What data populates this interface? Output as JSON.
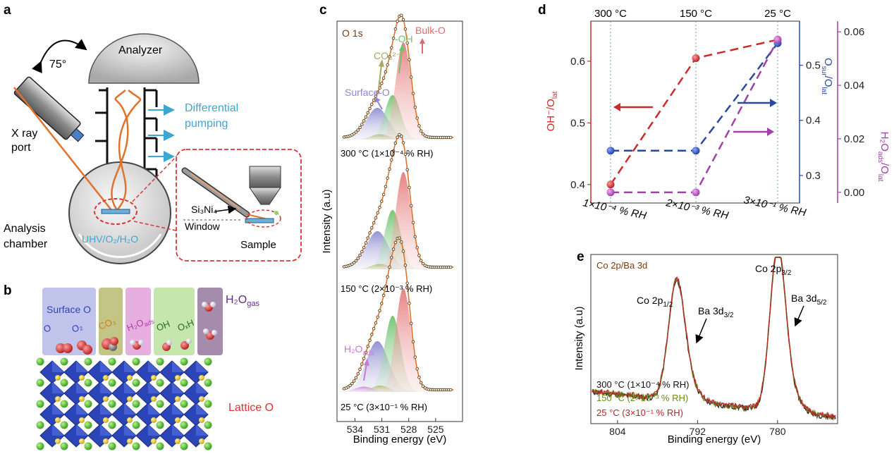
{
  "panels": {
    "a": "a",
    "b": "b",
    "c": "c",
    "d": "d",
    "e": "e"
  },
  "panel_a": {
    "angle": "75°",
    "analyzer": "Analyzer",
    "differential": "Differential",
    "pumping": "pumping",
    "xray_1": "X ray",
    "xray_2": "port",
    "chamber_1": "Analysis",
    "chamber_2": "chamber",
    "gas": "UHV/O₂/H₂O",
    "membrane": "Si₃Ni₄",
    "window": "Window",
    "sample": "Sample"
  },
  "panel_b": {
    "surface_o": "Surface O",
    "o_species": "O",
    "o2_species": "O₂",
    "co3_species": "CO₃",
    "h2o_ads": "H₂O",
    "h2o_ads_sub": "ads",
    "oh_species": "OH",
    "ohx_species": "OₓH",
    "h2o_gas": "H₂O",
    "h2o_gas_sub": "gas",
    "lattice_o": "Lattice O",
    "colors": {
      "surface": "#b9bde8",
      "co3": "#bcbf7a",
      "h2o": "#e4a6dc",
      "oh": "#bfe4a5",
      "gas": "#9b7fa3",
      "lattice": "#2b44b8"
    }
  },
  "chart_data": [
    {
      "panel": "c",
      "type": "line",
      "title": "O 1s",
      "xlabel": "Binding energy (eV)",
      "ylabel": "Intensity (a.u)",
      "xlim": [
        536,
        522
      ],
      "xticks": [
        "534",
        "531",
        "528",
        "525"
      ],
      "components": [
        {
          "name": "Surface-O",
          "center_ev": 531.5,
          "color": "#8a88d0"
        },
        {
          "name": "CO₃²⁻",
          "center_ev": 531.2,
          "color": "#a8a860"
        },
        {
          "name": "-OH",
          "center_ev": 529.8,
          "color": "#6ec46e"
        },
        {
          "name": "Bulk-O",
          "center_ev": 528.6,
          "color": "#e06a6a"
        },
        {
          "name": "H₂O",
          "name_sub": "ads",
          "center_ev": 533.0,
          "color": "#c77ad0"
        }
      ],
      "spectra": [
        {
          "label": "300 °C (1×10⁻⁴ % RH)",
          "amplitudes": [
            0.3,
            0.05,
            0.42,
            0.92
          ],
          "h2o": 0.0
        },
        {
          "label": "150 °C (2×10⁻³ % RH)",
          "amplitudes": [
            0.36,
            0.05,
            0.56,
            0.92
          ],
          "h2o": 0.0
        },
        {
          "label": "25 °C (3×10⁻¹ % RH)",
          "amplitudes": [
            0.48,
            0.06,
            0.72,
            0.98
          ],
          "h2o": 0.05
        }
      ]
    },
    {
      "panel": "d",
      "type": "line",
      "categories": [
        "1×10⁻⁴ % RH",
        "2×10⁻³ % RH",
        "3×10⁻¹ % RH"
      ],
      "top_labels": [
        "300 °C",
        "150 °C",
        "25 °C"
      ],
      "series": [
        {
          "name": "OH⁻/O",
          "name_sub": "lat",
          "values": [
            0.4,
            0.605,
            0.635
          ],
          "ylim": [
            0.37,
            0.665
          ],
          "yticks": [
            "0.4",
            "0.5",
            "0.6"
          ],
          "color": "#cc2b2b"
        },
        {
          "name": "O",
          "name_sub": "sur",
          "name_tail": "/O",
          "name_tail_sub": "lat",
          "values": [
            0.345,
            0.345,
            0.54
          ],
          "ylim": [
            0.25,
            0.58
          ],
          "yticks": [
            "0.3",
            "0.4",
            "0.5"
          ],
          "color": "#2a4aa0"
        },
        {
          "name": "H₂O",
          "name_sub": "ads",
          "name_tail": "/O",
          "name_tail_sub": "lat",
          "values": [
            0.0,
            0.0,
            0.057
          ],
          "ylim": [
            -0.004,
            0.064
          ],
          "yticks": [
            "0.00",
            "0.02",
            "0.04",
            "0.06"
          ],
          "color": "#a040a8"
        }
      ]
    },
    {
      "panel": "e",
      "type": "line",
      "title": "Co 2p/Ba 3d",
      "xlabel": "Binding energy (eV)",
      "ylabel": "Intensity (a.u)",
      "xlim": [
        808,
        771
      ],
      "xticks": [
        "804",
        "792",
        "780"
      ],
      "peaks": [
        {
          "name": "Co 2p",
          "sub": "1/2",
          "center_ev": 795.2,
          "height": 0.72
        },
        {
          "name": "Ba 3d",
          "sub": "3/2",
          "center_ev": 793.8,
          "height": 0.0
        },
        {
          "name": "Co 2p",
          "sub": "3/2",
          "center_ev": 780.0,
          "height": 0.98
        },
        {
          "name": "Ba 3d",
          "sub": "5/2",
          "center_ev": 778.5,
          "height": 0.0
        }
      ],
      "series": [
        {
          "name": "300 °C (1×10⁻⁴ % RH)",
          "color": "#111111"
        },
        {
          "name": "150 °C (2×10⁻³ % RH)",
          "color": "#6a8a1a"
        },
        {
          "name": "25 °C (3×10⁻¹ % RH)",
          "color": "#b52525"
        }
      ]
    }
  ]
}
